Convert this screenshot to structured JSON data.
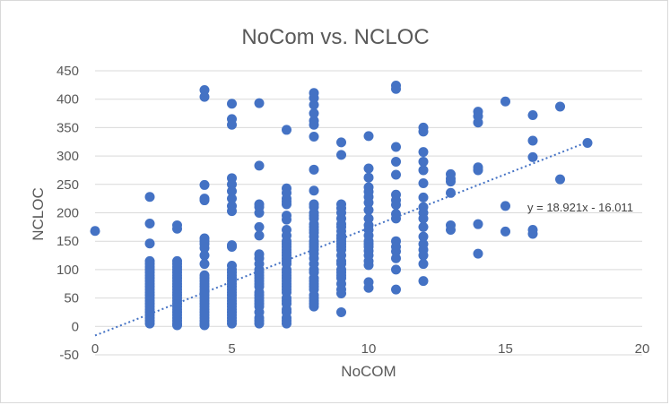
{
  "chart_data": {
    "type": "scatter",
    "title": "NoCom vs. NCLOC",
    "xlabel": "NoCOM",
    "ylabel": "NCLOC",
    "xlim": [
      0,
      20
    ],
    "ylim": [
      -50,
      450
    ],
    "xticks": [
      0,
      5,
      10,
      15,
      20
    ],
    "yticks": [
      -50,
      0,
      50,
      100,
      150,
      200,
      250,
      300,
      350,
      400,
      450
    ],
    "xtick_labels": [
      "0",
      "5",
      "10",
      "15",
      "20"
    ],
    "ytick_labels": [
      "-50",
      "0",
      "50",
      "100",
      "150",
      "200",
      "250",
      "300",
      "350",
      "400",
      "450"
    ],
    "grid": "horizontal",
    "marker_color": "#4472C4",
    "trendline": {
      "type": "linear",
      "slope": 18.921,
      "intercept": -16.011,
      "label": "y = 18.921x - 16.011",
      "color": "#4472C4",
      "style": "dotted"
    },
    "series": [
      {
        "points": [
          [
            0,
            168
          ],
          [
            2,
            228
          ],
          [
            2,
            181
          ],
          [
            2,
            146
          ],
          [
            2,
            115
          ],
          [
            2,
            110
          ],
          [
            2,
            105
          ],
          [
            2,
            100
          ],
          [
            2,
            95
          ],
          [
            2,
            90
          ],
          [
            2,
            85
          ],
          [
            2,
            80
          ],
          [
            2,
            75
          ],
          [
            2,
            70
          ],
          [
            2,
            65
          ],
          [
            2,
            60
          ],
          [
            2,
            55
          ],
          [
            2,
            50
          ],
          [
            2,
            45
          ],
          [
            2,
            40
          ],
          [
            2,
            35
          ],
          [
            2,
            30
          ],
          [
            2,
            25
          ],
          [
            2,
            20
          ],
          [
            2,
            15
          ],
          [
            2,
            10
          ],
          [
            2,
            5
          ],
          [
            3,
            178
          ],
          [
            3,
            172
          ],
          [
            3,
            115
          ],
          [
            3,
            110
          ],
          [
            3,
            105
          ],
          [
            3,
            100
          ],
          [
            3,
            95
          ],
          [
            3,
            90
          ],
          [
            3,
            85
          ],
          [
            3,
            80
          ],
          [
            3,
            75
          ],
          [
            3,
            70
          ],
          [
            3,
            65
          ],
          [
            3,
            60
          ],
          [
            3,
            55
          ],
          [
            3,
            50
          ],
          [
            3,
            45
          ],
          [
            3,
            40
          ],
          [
            3,
            35
          ],
          [
            3,
            30
          ],
          [
            3,
            25
          ],
          [
            3,
            20
          ],
          [
            3,
            15
          ],
          [
            3,
            10
          ],
          [
            3,
            5
          ],
          [
            3,
            2
          ],
          [
            4,
            416
          ],
          [
            4,
            404
          ],
          [
            4,
            249
          ],
          [
            4,
            225
          ],
          [
            4,
            222
          ],
          [
            4,
            155
          ],
          [
            4,
            150
          ],
          [
            4,
            145
          ],
          [
            4,
            138
          ],
          [
            4,
            125
          ],
          [
            4,
            110
          ],
          [
            4,
            90
          ],
          [
            4,
            85
          ],
          [
            4,
            80
          ],
          [
            4,
            75
          ],
          [
            4,
            70
          ],
          [
            4,
            65
          ],
          [
            4,
            60
          ],
          [
            4,
            55
          ],
          [
            4,
            50
          ],
          [
            4,
            45
          ],
          [
            4,
            40
          ],
          [
            4,
            35
          ],
          [
            4,
            30
          ],
          [
            4,
            25
          ],
          [
            4,
            20
          ],
          [
            4,
            15
          ],
          [
            4,
            10
          ],
          [
            4,
            5
          ],
          [
            4,
            2
          ],
          [
            5,
            392
          ],
          [
            5,
            365
          ],
          [
            5,
            355
          ],
          [
            5,
            261
          ],
          [
            5,
            250
          ],
          [
            5,
            238
          ],
          [
            5,
            225
          ],
          [
            5,
            212
          ],
          [
            5,
            203
          ],
          [
            5,
            143
          ],
          [
            5,
            140
          ],
          [
            5,
            107
          ],
          [
            5,
            100
          ],
          [
            5,
            95
          ],
          [
            5,
            90
          ],
          [
            5,
            85
          ],
          [
            5,
            80
          ],
          [
            5,
            75
          ],
          [
            5,
            70
          ],
          [
            5,
            65
          ],
          [
            5,
            60
          ],
          [
            5,
            55
          ],
          [
            5,
            50
          ],
          [
            5,
            45
          ],
          [
            5,
            40
          ],
          [
            5,
            35
          ],
          [
            5,
            30
          ],
          [
            5,
            25
          ],
          [
            5,
            20
          ],
          [
            5,
            15
          ],
          [
            5,
            10
          ],
          [
            5,
            5
          ],
          [
            6,
            393
          ],
          [
            6,
            283
          ],
          [
            6,
            215
          ],
          [
            6,
            210
          ],
          [
            6,
            200
          ],
          [
            6,
            175
          ],
          [
            6,
            160
          ],
          [
            6,
            127
          ],
          [
            6,
            120
          ],
          [
            6,
            110
          ],
          [
            6,
            100
          ],
          [
            6,
            95
          ],
          [
            6,
            90
          ],
          [
            6,
            85
          ],
          [
            6,
            80
          ],
          [
            6,
            75
          ],
          [
            6,
            70
          ],
          [
            6,
            60
          ],
          [
            6,
            55
          ],
          [
            6,
            50
          ],
          [
            6,
            45
          ],
          [
            6,
            40
          ],
          [
            6,
            35
          ],
          [
            6,
            25
          ],
          [
            6,
            15
          ],
          [
            6,
            10
          ],
          [
            6,
            5
          ],
          [
            7,
            346
          ],
          [
            7,
            243
          ],
          [
            7,
            235
          ],
          [
            7,
            225
          ],
          [
            7,
            220
          ],
          [
            7,
            215
          ],
          [
            7,
            195
          ],
          [
            7,
            188
          ],
          [
            7,
            170
          ],
          [
            7,
            160
          ],
          [
            7,
            150
          ],
          [
            7,
            145
          ],
          [
            7,
            140
          ],
          [
            7,
            135
          ],
          [
            7,
            130
          ],
          [
            7,
            125
          ],
          [
            7,
            120
          ],
          [
            7,
            115
          ],
          [
            7,
            110
          ],
          [
            7,
            100
          ],
          [
            7,
            95
          ],
          [
            7,
            90
          ],
          [
            7,
            85
          ],
          [
            7,
            80
          ],
          [
            7,
            75
          ],
          [
            7,
            70
          ],
          [
            7,
            65
          ],
          [
            7,
            60
          ],
          [
            7,
            50
          ],
          [
            7,
            45
          ],
          [
            7,
            40
          ],
          [
            7,
            30
          ],
          [
            7,
            25
          ],
          [
            7,
            15
          ],
          [
            7,
            10
          ],
          [
            7,
            5
          ],
          [
            8,
            411
          ],
          [
            8,
            402
          ],
          [
            8,
            390
          ],
          [
            8,
            375
          ],
          [
            8,
            362
          ],
          [
            8,
            355
          ],
          [
            8,
            334
          ],
          [
            8,
            276
          ],
          [
            8,
            239
          ],
          [
            8,
            215
          ],
          [
            8,
            210
          ],
          [
            8,
            200
          ],
          [
            8,
            195
          ],
          [
            8,
            190
          ],
          [
            8,
            180
          ],
          [
            8,
            175
          ],
          [
            8,
            170
          ],
          [
            8,
            165
          ],
          [
            8,
            158
          ],
          [
            8,
            150
          ],
          [
            8,
            145
          ],
          [
            8,
            140
          ],
          [
            8,
            135
          ],
          [
            8,
            128
          ],
          [
            8,
            120
          ],
          [
            8,
            110
          ],
          [
            8,
            100
          ],
          [
            8,
            95
          ],
          [
            8,
            85
          ],
          [
            8,
            80
          ],
          [
            8,
            75
          ],
          [
            8,
            70
          ],
          [
            8,
            65
          ],
          [
            8,
            55
          ],
          [
            8,
            50
          ],
          [
            8,
            45
          ],
          [
            8,
            40
          ],
          [
            8,
            35
          ],
          [
            9,
            324
          ],
          [
            9,
            302
          ],
          [
            9,
            215
          ],
          [
            9,
            208
          ],
          [
            9,
            200
          ],
          [
            9,
            190
          ],
          [
            9,
            180
          ],
          [
            9,
            175
          ],
          [
            9,
            168
          ],
          [
            9,
            160
          ],
          [
            9,
            155
          ],
          [
            9,
            150
          ],
          [
            9,
            145
          ],
          [
            9,
            140
          ],
          [
            9,
            135
          ],
          [
            9,
            125
          ],
          [
            9,
            115
          ],
          [
            9,
            110
          ],
          [
            9,
            100
          ],
          [
            9,
            95
          ],
          [
            9,
            90
          ],
          [
            9,
            85
          ],
          [
            9,
            75
          ],
          [
            9,
            65
          ],
          [
            9,
            58
          ],
          [
            9,
            25
          ],
          [
            10,
            335
          ],
          [
            10,
            278
          ],
          [
            10,
            262
          ],
          [
            10,
            245
          ],
          [
            10,
            237
          ],
          [
            10,
            228
          ],
          [
            10,
            218
          ],
          [
            10,
            205
          ],
          [
            10,
            190
          ],
          [
            10,
            178
          ],
          [
            10,
            170
          ],
          [
            10,
            160
          ],
          [
            10,
            150
          ],
          [
            10,
            145
          ],
          [
            10,
            140
          ],
          [
            10,
            133
          ],
          [
            10,
            125
          ],
          [
            10,
            115
          ],
          [
            10,
            108
          ],
          [
            10,
            78
          ],
          [
            10,
            68
          ],
          [
            11,
            424
          ],
          [
            11,
            418
          ],
          [
            11,
            316
          ],
          [
            11,
            290
          ],
          [
            11,
            267
          ],
          [
            11,
            232
          ],
          [
            11,
            222
          ],
          [
            11,
            214
          ],
          [
            11,
            198
          ],
          [
            11,
            190
          ],
          [
            11,
            150
          ],
          [
            11,
            140
          ],
          [
            11,
            132
          ],
          [
            11,
            120
          ],
          [
            11,
            100
          ],
          [
            11,
            65
          ],
          [
            12,
            350
          ],
          [
            12,
            343
          ],
          [
            12,
            307
          ],
          [
            12,
            290
          ],
          [
            12,
            275
          ],
          [
            12,
            252
          ],
          [
            12,
            227
          ],
          [
            12,
            210
          ],
          [
            12,
            200
          ],
          [
            12,
            190
          ],
          [
            12,
            175
          ],
          [
            12,
            158
          ],
          [
            12,
            145
          ],
          [
            12,
            135
          ],
          [
            12,
            125
          ],
          [
            12,
            110
          ],
          [
            12,
            80
          ],
          [
            13,
            268
          ],
          [
            13,
            260
          ],
          [
            13,
            255
          ],
          [
            13,
            235
          ],
          [
            13,
            178
          ],
          [
            13,
            170
          ],
          [
            14,
            378
          ],
          [
            14,
            370
          ],
          [
            14,
            359
          ],
          [
            14,
            280
          ],
          [
            14,
            275
          ],
          [
            14,
            180
          ],
          [
            14,
            128
          ],
          [
            15,
            396
          ],
          [
            15,
            212
          ],
          [
            15,
            167
          ],
          [
            16,
            372
          ],
          [
            16,
            327
          ],
          [
            16,
            298
          ],
          [
            16,
            170
          ],
          [
            16,
            163
          ],
          [
            17,
            387
          ],
          [
            17,
            259
          ],
          [
            18,
            323
          ]
        ]
      }
    ]
  }
}
